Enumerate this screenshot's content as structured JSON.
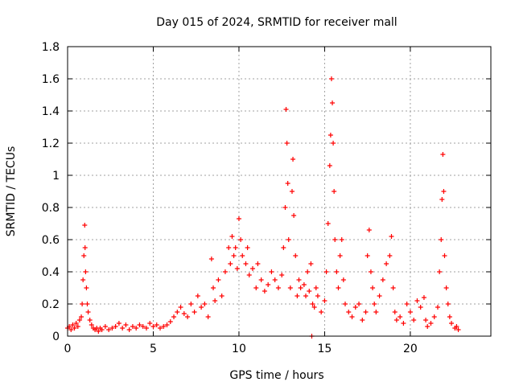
{
  "chart_data": {
    "type": "scatter",
    "title": "Day 015 of 2024, SRMTID for receiver mall",
    "xlabel": "GPS time / hours",
    "ylabel": "SRMTID / TECUs",
    "xlim": [
      0,
      24.7
    ],
    "ylim": [
      0,
      1.8
    ],
    "xticks": [
      0,
      5,
      10,
      15,
      20
    ],
    "xtick_labels": [
      "0",
      "5",
      "10",
      "15",
      "20"
    ],
    "yticks": [
      0,
      0.2,
      0.4,
      0.6,
      0.8,
      1.0,
      1.2,
      1.4,
      1.6,
      1.8
    ],
    "ytick_labels": [
      "0",
      "0.2",
      "0.4",
      "0.6",
      "0.8",
      "1",
      "1.2",
      "1.4",
      "1.6",
      "1.8"
    ],
    "grid": true,
    "marker": "+",
    "color": "#ff0000",
    "series": [
      {
        "name": "SRMTID",
        "points": [
          [
            0.0,
            0.05
          ],
          [
            0.1,
            0.06
          ],
          [
            0.2,
            0.04
          ],
          [
            0.3,
            0.07
          ],
          [
            0.4,
            0.05
          ],
          [
            0.5,
            0.08
          ],
          [
            0.6,
            0.06
          ],
          [
            0.7,
            0.1
          ],
          [
            0.8,
            0.12
          ],
          [
            0.85,
            0.2
          ],
          [
            0.9,
            0.35
          ],
          [
            0.95,
            0.5
          ],
          [
            1.0,
            0.69
          ],
          [
            1.02,
            0.55
          ],
          [
            1.05,
            0.4
          ],
          [
            1.1,
            0.3
          ],
          [
            1.15,
            0.2
          ],
          [
            1.2,
            0.15
          ],
          [
            1.3,
            0.1
          ],
          [
            1.4,
            0.07
          ],
          [
            1.5,
            0.05
          ],
          [
            1.6,
            0.04
          ],
          [
            1.7,
            0.05
          ],
          [
            1.8,
            0.03
          ],
          [
            1.9,
            0.05
          ],
          [
            2.0,
            0.04
          ],
          [
            2.2,
            0.06
          ],
          [
            2.4,
            0.04
          ],
          [
            2.6,
            0.05
          ],
          [
            2.8,
            0.06
          ],
          [
            3.0,
            0.08
          ],
          [
            3.2,
            0.05
          ],
          [
            3.4,
            0.07
          ],
          [
            3.6,
            0.04
          ],
          [
            3.8,
            0.06
          ],
          [
            4.0,
            0.05
          ],
          [
            4.2,
            0.07
          ],
          [
            4.4,
            0.06
          ],
          [
            4.6,
            0.05
          ],
          [
            4.8,
            0.08
          ],
          [
            5.0,
            0.06
          ],
          [
            5.2,
            0.07
          ],
          [
            5.4,
            0.05
          ],
          [
            5.6,
            0.06
          ],
          [
            5.8,
            0.07
          ],
          [
            6.0,
            0.09
          ],
          [
            6.2,
            0.12
          ],
          [
            6.4,
            0.15
          ],
          [
            6.6,
            0.18
          ],
          [
            6.8,
            0.14
          ],
          [
            7.0,
            0.12
          ],
          [
            7.2,
            0.2
          ],
          [
            7.4,
            0.15
          ],
          [
            7.6,
            0.25
          ],
          [
            7.8,
            0.18
          ],
          [
            8.0,
            0.2
          ],
          [
            8.2,
            0.12
          ],
          [
            8.4,
            0.48
          ],
          [
            8.5,
            0.3
          ],
          [
            8.6,
            0.22
          ],
          [
            8.8,
            0.35
          ],
          [
            9.0,
            0.25
          ],
          [
            9.2,
            0.4
          ],
          [
            9.4,
            0.55
          ],
          [
            9.5,
            0.45
          ],
          [
            9.6,
            0.62
          ],
          [
            9.7,
            0.5
          ],
          [
            9.8,
            0.55
          ],
          [
            9.9,
            0.42
          ],
          [
            10.0,
            0.73
          ],
          [
            10.1,
            0.6
          ],
          [
            10.2,
            0.5
          ],
          [
            10.4,
            0.45
          ],
          [
            10.5,
            0.55
          ],
          [
            10.6,
            0.38
          ],
          [
            10.8,
            0.42
          ],
          [
            11.0,
            0.3
          ],
          [
            11.1,
            0.45
          ],
          [
            11.3,
            0.35
          ],
          [
            11.5,
            0.28
          ],
          [
            11.7,
            0.32
          ],
          [
            11.9,
            0.4
          ],
          [
            12.1,
            0.35
          ],
          [
            12.3,
            0.3
          ],
          [
            12.5,
            0.38
          ],
          [
            12.6,
            0.55
          ],
          [
            12.7,
            0.8
          ],
          [
            12.75,
            1.41
          ],
          [
            12.8,
            1.2
          ],
          [
            12.85,
            0.95
          ],
          [
            12.9,
            0.6
          ],
          [
            13.0,
            0.3
          ],
          [
            13.1,
            0.9
          ],
          [
            13.15,
            1.1
          ],
          [
            13.2,
            0.75
          ],
          [
            13.3,
            0.5
          ],
          [
            13.4,
            0.25
          ],
          [
            13.5,
            0.35
          ],
          [
            13.6,
            0.3
          ],
          [
            13.8,
            0.32
          ],
          [
            13.9,
            0.25
          ],
          [
            14.0,
            0.4
          ],
          [
            14.1,
            0.28
          ],
          [
            14.2,
            0.45
          ],
          [
            14.3,
            0.2
          ],
          [
            14.4,
            0.18
          ],
          [
            14.5,
            0.3
          ],
          [
            14.6,
            0.25
          ],
          [
            14.8,
            0.15
          ],
          [
            15.0,
            0.22
          ],
          [
            15.1,
            0.4
          ],
          [
            15.2,
            0.7
          ],
          [
            15.3,
            1.06
          ],
          [
            15.35,
            1.25
          ],
          [
            15.4,
            1.6
          ],
          [
            15.45,
            1.45
          ],
          [
            15.5,
            1.2
          ],
          [
            15.55,
            0.9
          ],
          [
            15.6,
            0.6
          ],
          [
            15.7,
            0.4
          ],
          [
            15.8,
            0.3
          ],
          [
            15.9,
            0.5
          ],
          [
            16.0,
            0.6
          ],
          [
            16.1,
            0.35
          ],
          [
            16.2,
            0.2
          ],
          [
            16.4,
            0.15
          ],
          [
            16.6,
            0.12
          ],
          [
            16.8,
            0.18
          ],
          [
            17.0,
            0.2
          ],
          [
            17.2,
            0.1
          ],
          [
            17.4,
            0.15
          ],
          [
            17.5,
            0.5
          ],
          [
            17.6,
            0.66
          ],
          [
            17.7,
            0.4
          ],
          [
            17.8,
            0.3
          ],
          [
            17.9,
            0.2
          ],
          [
            18.0,
            0.15
          ],
          [
            18.2,
            0.25
          ],
          [
            18.4,
            0.35
          ],
          [
            18.6,
            0.45
          ],
          [
            18.8,
            0.5
          ],
          [
            18.9,
            0.62
          ],
          [
            19.0,
            0.3
          ],
          [
            19.1,
            0.15
          ],
          [
            19.2,
            0.1
          ],
          [
            19.4,
            0.12
          ],
          [
            19.6,
            0.08
          ],
          [
            19.8,
            0.2
          ],
          [
            20.0,
            0.15
          ],
          [
            20.2,
            0.1
          ],
          [
            20.4,
            0.22
          ],
          [
            20.6,
            0.18
          ],
          [
            20.8,
            0.24
          ],
          [
            20.9,
            0.1
          ],
          [
            21.0,
            0.06
          ],
          [
            21.2,
            0.08
          ],
          [
            21.4,
            0.12
          ],
          [
            21.6,
            0.18
          ],
          [
            21.7,
            0.4
          ],
          [
            21.8,
            0.6
          ],
          [
            21.85,
            0.85
          ],
          [
            21.9,
            1.13
          ],
          [
            21.95,
            0.9
          ],
          [
            22.0,
            0.5
          ],
          [
            22.1,
            0.3
          ],
          [
            22.2,
            0.2
          ],
          [
            22.3,
            0.12
          ],
          [
            22.4,
            0.08
          ],
          [
            22.6,
            0.05
          ],
          [
            22.7,
            0.06
          ],
          [
            22.8,
            0.04
          ],
          [
            14.25,
            0.0
          ]
        ]
      }
    ]
  }
}
